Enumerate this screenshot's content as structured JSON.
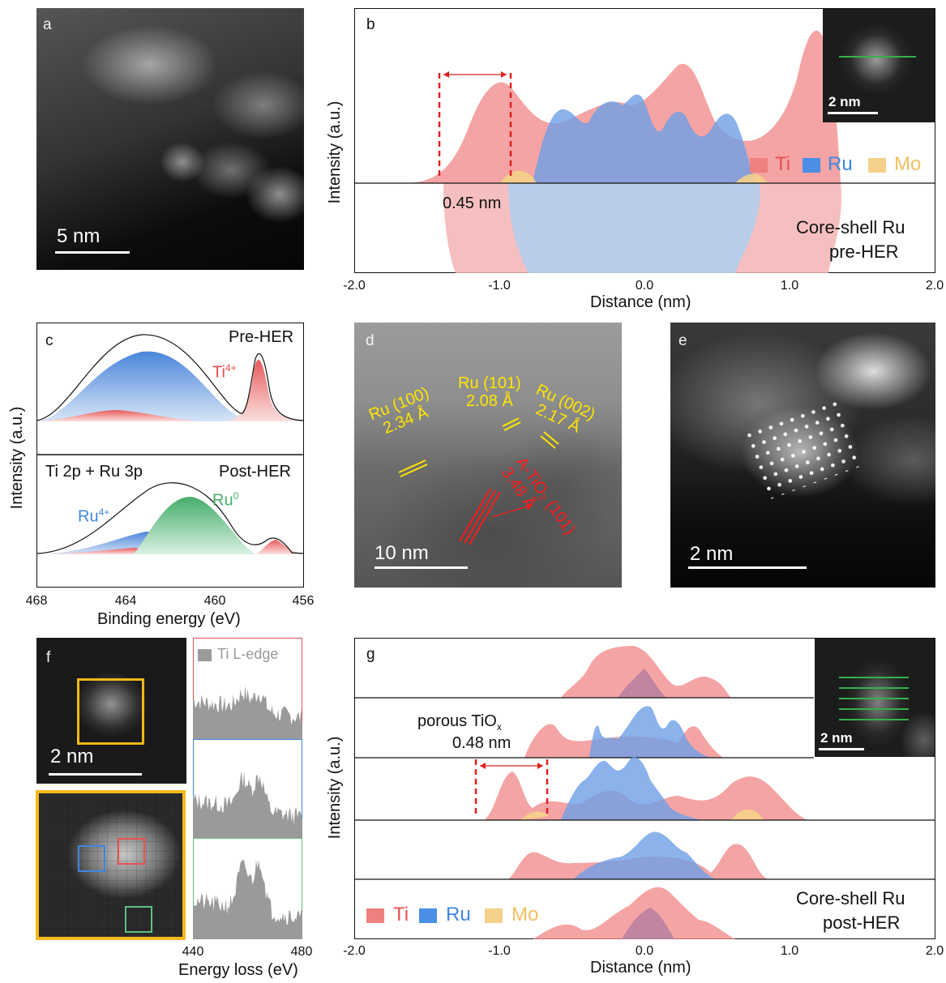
{
  "panel_a": {
    "tag": "a",
    "scalebar": "5 nm"
  },
  "panel_b": {
    "tag": "b",
    "ylabel": "Intensity (a.u.)",
    "xlabel": "Distance (nm)",
    "xticks": [
      "-2.0",
      "-1.0",
      "0.0",
      "1.0",
      "2.0"
    ],
    "legend": [
      "Ti",
      "Ru",
      "Mo"
    ],
    "annotation": "0.45 nm",
    "label_line1": "Core-shell Ru",
    "label_line2": "pre-HER",
    "inset_scalebar": "2 nm"
  },
  "panel_c": {
    "tag": "c",
    "ylabel": "Intensity (a.u.)",
    "xlabel": "Binding energy (eV)",
    "xticks": [
      "468",
      "464",
      "460",
      "456"
    ],
    "top_label": "Pre-HER",
    "top_species": "Ti",
    "top_species_sup": "4+",
    "bottom_left": "Ti 2p + Ru 3p",
    "bottom_label": "Post-HER",
    "ru4_text": "Ru",
    "ru4_sup": "4+",
    "ru0_text": "Ru",
    "ru0_sup": "0"
  },
  "panel_d": {
    "tag": "d",
    "scalebar": "10 nm",
    "ru100_a": "Ru (100)",
    "ru100_b": "2.34 Å",
    "ru101_a": "Ru (101)",
    "ru101_b": "2.08 Å",
    "ru002_a": "Ru (002)",
    "ru002_b": "2.17 Å",
    "tio2_a": "A-TiO₂ (101)",
    "tio2_b": "3.48 Å"
  },
  "panel_e": {
    "tag": "e",
    "scalebar": "2 nm"
  },
  "panel_f": {
    "tag": "f",
    "scalebar": "2 nm",
    "legend": "Ti L-edge",
    "xlabel": "Energy loss (eV)",
    "xticks": [
      "440",
      "480"
    ]
  },
  "panel_g": {
    "tag": "g",
    "ylabel": "Intensity (a.u.)",
    "xlabel": "Distance (nm)",
    "xticks": [
      "-2.0",
      "-1.0",
      "0.0",
      "1.0",
      "2.0"
    ],
    "porous_line1": "porous TiO",
    "porous_sub": "x",
    "porous_line2": "0.48 nm",
    "legend": [
      "Ti",
      "Ru",
      "Mo"
    ],
    "label_line1": "Core-shell Ru",
    "label_line2": "post-HER",
    "inset_scalebar": "2 nm"
  },
  "colors": {
    "ti": "#f08080",
    "ru": "#6aa0e6",
    "mo": "#f5d08a",
    "ru0": "#5fbf7f",
    "scale": "#ffffff",
    "highlight": "#f5b81c"
  }
}
